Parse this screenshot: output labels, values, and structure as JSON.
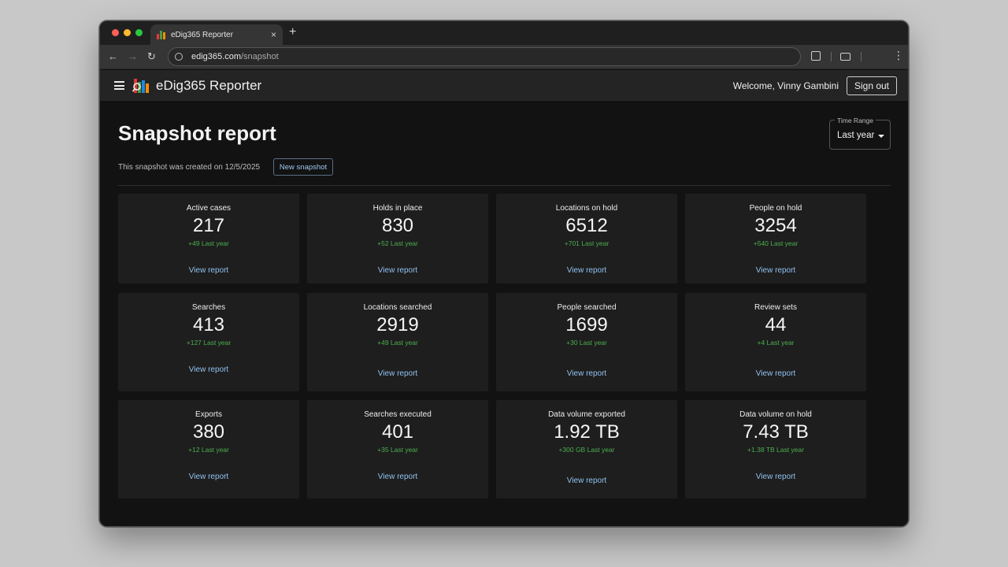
{
  "browser": {
    "tab_title": "eDig365 Reporter",
    "tab_close": "×",
    "new_tab": "+",
    "url_host": "edig365.com",
    "url_path": "/snapshot",
    "back_glyph": "←",
    "forward_glyph": "→",
    "reload_glyph": "↻",
    "menu_glyph": "⋮",
    "icons": [
      "back-icon",
      "forward-icon",
      "reload-icon",
      "site-info-icon",
      "extensions-icon",
      "cast-icon",
      "menu-icon"
    ]
  },
  "app": {
    "title": "eDig365 Reporter",
    "welcome": "Welcome, Vinny Gambini",
    "sign_out_label": "Sign out",
    "logo_colors": [
      "#e53935",
      "#43a047",
      "#1e88e5",
      "#fdd835",
      "#fb8c00"
    ]
  },
  "page": {
    "title": "Snapshot report",
    "created_text": "This snapshot was created on 12/5/2025",
    "new_snapshot_label": "New snapshot",
    "time_range_label": "Time Range",
    "time_range_value": "Last year"
  },
  "colors": {
    "accent_link": "#90c2f0",
    "delta_green": "#4caf50",
    "card_bg": "#1e1e1e",
    "page_bg": "#121212"
  },
  "cards": [
    {
      "label": "Active cases",
      "value": "217",
      "delta": "+49 Last year",
      "link": "View report"
    },
    {
      "label": "Holds in place",
      "value": "830",
      "delta": "+52 Last year",
      "link": "View report"
    },
    {
      "label": "Locations on hold",
      "value": "6512",
      "delta": "+701 Last year",
      "link": "View report"
    },
    {
      "label": "People on hold",
      "value": "3254",
      "delta": "+540 Last year",
      "link": "View report"
    },
    {
      "label": "Searches",
      "value": "413",
      "delta": "+127 Last year",
      "link": "View report"
    },
    {
      "label": "Locations searched",
      "value": "2919",
      "delta": "+49 Last year",
      "link": "View report"
    },
    {
      "label": "People searched",
      "value": "1699",
      "delta": "+30 Last year",
      "link": "View report"
    },
    {
      "label": "Review sets",
      "value": "44",
      "delta": "+4 Last year",
      "link": "View report"
    },
    {
      "label": "Exports",
      "value": "380",
      "delta": "+12 Last year",
      "link": "View report"
    },
    {
      "label": "Searches executed",
      "value": "401",
      "delta": "+35 Last year",
      "link": "View report"
    },
    {
      "label": "Data volume exported",
      "value": "1.92 TB",
      "delta": "+300 GB Last year",
      "link": "View report"
    },
    {
      "label": "Data volume on hold",
      "value": "7.43 TB",
      "delta": "+1.38 TB Last year",
      "link": "View report"
    }
  ]
}
